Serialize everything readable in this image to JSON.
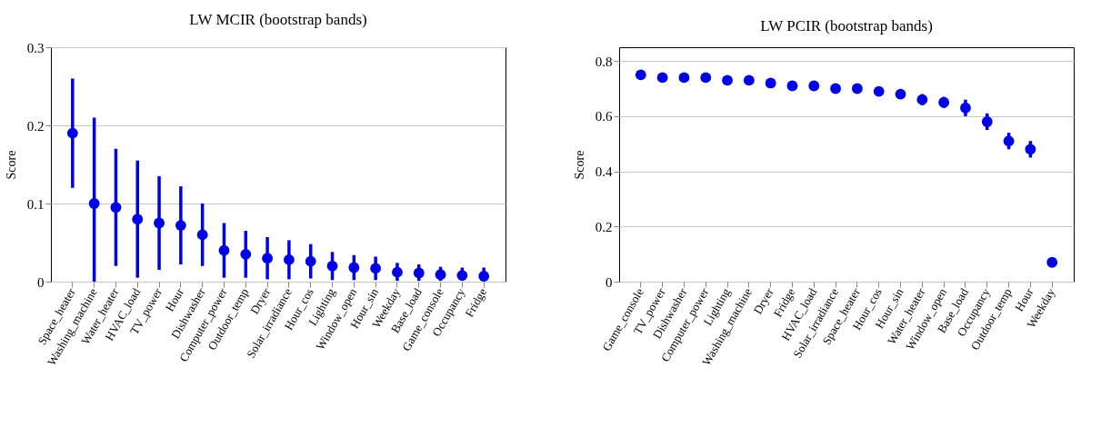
{
  "chart_data": [
    {
      "type": "scatter",
      "title": "LW MCIR (bootstrap bands)",
      "ylabel": "Score",
      "categories": [
        "Space_heater",
        "Washing_machine",
        "Water_heater",
        "HVAC_load",
        "TV_power",
        "Hour",
        "Dishwasher",
        "Computer_power",
        "Outdoor_temp",
        "Dryer",
        "Solar_irradiance",
        "Hour_cos",
        "Lighting",
        "Window_open",
        "Hour_sin",
        "Weekday",
        "Base_load",
        "Game_console",
        "Occupancy",
        "Fridge"
      ],
      "series": [
        {
          "color": "#0000e6",
          "values": [
            0.19,
            0.1,
            0.095,
            0.08,
            0.075,
            0.072,
            0.06,
            0.04,
            0.035,
            0.03,
            0.028,
            0.026,
            0.02,
            0.018,
            0.017,
            0.012,
            0.011,
            0.009,
            0.008,
            0.007
          ],
          "errors": [
            [
              0.12,
              0.26
            ],
            [
              0,
              0.21
            ],
            [
              0.02,
              0.17
            ],
            [
              0.005,
              0.155
            ],
            [
              0.015,
              0.135
            ],
            [
              0.022,
              0.122
            ],
            [
              0.02,
              0.1
            ],
            [
              0.005,
              0.075
            ],
            [
              0.005,
              0.065
            ],
            [
              0.003,
              0.057
            ],
            [
              0.003,
              0.053
            ],
            [
              0.004,
              0.048
            ],
            [
              0.002,
              0.038
            ],
            [
              0.002,
              0.034
            ],
            [
              0.002,
              0.032
            ],
            [
              0.001,
              0.024
            ],
            [
              0.001,
              0.022
            ],
            [
              0.001,
              0.019
            ],
            [
              0.001,
              0.018
            ],
            [
              0.001,
              0.018
            ]
          ]
        }
      ],
      "ylim": [
        0,
        0.3
      ],
      "yticks": [
        0,
        0.1,
        0.2,
        0.3
      ],
      "grid": "y",
      "marker": "circle"
    },
    {
      "type": "scatter",
      "title": "LW PCIR (bootstrap bands)",
      "ylabel": "Score",
      "categories": [
        "Game_console",
        "TV_power",
        "Dishwasher",
        "Computer_power",
        "Lighting",
        "Washing_machine",
        "Dryer",
        "Fridge",
        "HVAC_load",
        "Solar_irradiance",
        "Space_heater",
        "Hour_cos",
        "Hour_sin",
        "Water_heater",
        "Window_open",
        "Base_load",
        "Occupancy",
        "Outdoor_temp",
        "Hour",
        "Weekday"
      ],
      "series": [
        {
          "color": "#0000e6",
          "values": [
            0.75,
            0.74,
            0.74,
            0.74,
            0.73,
            0.73,
            0.72,
            0.71,
            0.71,
            0.7,
            0.7,
            0.69,
            0.68,
            0.66,
            0.65,
            0.63,
            0.58,
            0.51,
            0.48,
            0.07
          ],
          "errors": [
            null,
            null,
            null,
            null,
            null,
            null,
            null,
            null,
            null,
            null,
            null,
            null,
            null,
            [
              0.64,
              0.68
            ],
            [
              0.63,
              0.67
            ],
            [
              0.6,
              0.66
            ],
            [
              0.55,
              0.61
            ],
            [
              0.48,
              0.54
            ],
            [
              0.45,
              0.51
            ],
            null
          ]
        }
      ],
      "ylim": [
        0,
        0.85
      ],
      "yticks": [
        0,
        0.2,
        0.4,
        0.6,
        0.8
      ],
      "grid": "y",
      "marker": "circle"
    }
  ]
}
